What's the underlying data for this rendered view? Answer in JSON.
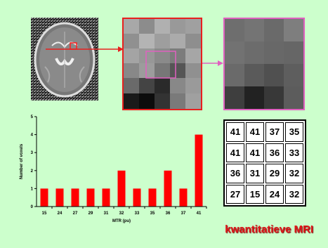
{
  "colors": {
    "background": "#ccffcc",
    "bar": "#ff0000",
    "zoom_frame": "#e8201e",
    "detail_frame": "#e060c0",
    "caption": "#e0181a"
  },
  "images": {
    "brain": "axial-brain-mri-slice",
    "zoom": "zoomed-voxel-region",
    "detail": "voxel-detail-4x4"
  },
  "chart_data": {
    "type": "bar",
    "categories": [
      "15",
      "24",
      "27",
      "29",
      "31",
      "32",
      "33",
      "35",
      "36",
      "37",
      "41"
    ],
    "values": [
      1,
      1,
      1,
      1,
      1,
      2,
      1,
      1,
      2,
      1,
      4
    ],
    "xlabel": "MTR (pu)",
    "ylabel": "Number of voxels",
    "ylim": [
      0,
      5
    ],
    "yticks": [
      0,
      1,
      2,
      3,
      4,
      5
    ],
    "grid": false,
    "legend": "none"
  },
  "matrix": {
    "rows": [
      [
        "41",
        "41",
        "37",
        "35"
      ],
      [
        "41",
        "41",
        "36",
        "33"
      ],
      [
        "36",
        "31",
        "29",
        "32"
      ],
      [
        "27",
        "15",
        "24",
        "32"
      ]
    ]
  },
  "caption": "kwantitatieve MRI"
}
